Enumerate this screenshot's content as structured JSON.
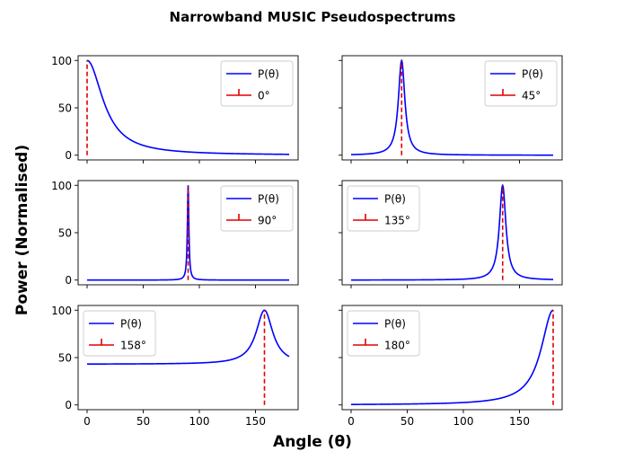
{
  "figure": {
    "title": "Narrowband MUSIC Pseudospectrums",
    "xlabel": "Angle (θ)",
    "ylabel": "Power (Normalised)"
  },
  "colors": {
    "curve": "#0000ff",
    "marker": "#e00000"
  },
  "chart_data": [
    {
      "type": "line",
      "series": [
        {
          "name": "P(θ)",
          "model": "peak",
          "center": 0,
          "width": 17,
          "floor": 0,
          "x_range": [
            0,
            180
          ]
        },
        {
          "name": "0°",
          "stem_x": 0,
          "stem_height": 100
        }
      ],
      "xlim": [
        -8,
        188
      ],
      "ylim": [
        -5,
        105
      ],
      "xticks": [
        0,
        50,
        100,
        150
      ],
      "yticks": [
        0,
        50,
        100
      ],
      "legend": "top-right"
    },
    {
      "type": "line",
      "series": [
        {
          "name": "P(θ)",
          "model": "peak",
          "center": 45,
          "width": 3.5,
          "floor": 0,
          "x_range": [
            0,
            180
          ]
        },
        {
          "name": "45°",
          "stem_x": 45,
          "stem_height": 100
        }
      ],
      "xlim": [
        -8,
        188
      ],
      "ylim": [
        -5,
        105
      ],
      "xticks": [
        0,
        50,
        100,
        150
      ],
      "yticks": [
        0,
        50,
        100
      ],
      "legend": "top-right"
    },
    {
      "type": "line",
      "series": [
        {
          "name": "P(θ)",
          "model": "peak",
          "center": 90,
          "width": 0.8,
          "floor": 0,
          "x_range": [
            0,
            180
          ]
        },
        {
          "name": "90°",
          "stem_x": 90,
          "stem_height": 100
        }
      ],
      "xlim": [
        -8,
        188
      ],
      "ylim": [
        -5,
        105
      ],
      "xticks": [
        0,
        50,
        100,
        150
      ],
      "yticks": [
        0,
        50,
        100
      ],
      "legend": "top-right"
    },
    {
      "type": "line",
      "series": [
        {
          "name": "P(θ)",
          "model": "peak",
          "center": 135,
          "width": 3.5,
          "floor": 0,
          "x_range": [
            0,
            180
          ]
        },
        {
          "name": "135°",
          "stem_x": 135,
          "stem_height": 100
        }
      ],
      "xlim": [
        -8,
        188
      ],
      "ylim": [
        -5,
        105
      ],
      "xticks": [
        0,
        50,
        100,
        150
      ],
      "yticks": [
        0,
        50,
        100
      ],
      "legend": "top-left"
    },
    {
      "type": "line",
      "series": [
        {
          "name": "P(θ)",
          "model": "peak",
          "center": 158,
          "width": 9,
          "floor": 43,
          "x_range": [
            0,
            180
          ]
        },
        {
          "name": "158°",
          "stem_x": 158,
          "stem_height": 100
        }
      ],
      "xlim": [
        -8,
        188
      ],
      "ylim": [
        -5,
        105
      ],
      "xticks": [
        0,
        50,
        100,
        150
      ],
      "yticks": [
        0,
        50,
        100
      ],
      "legend": "top-left"
    },
    {
      "type": "line",
      "series": [
        {
          "name": "P(θ)",
          "model": "peak",
          "center": 180,
          "width": 13,
          "floor": 0,
          "x_range": [
            0,
            180
          ]
        },
        {
          "name": "180°",
          "stem_x": 180,
          "stem_height": 100
        }
      ],
      "xlim": [
        -8,
        188
      ],
      "ylim": [
        -5,
        105
      ],
      "xticks": [
        0,
        50,
        100,
        150
      ],
      "yticks": [
        0,
        50,
        100
      ],
      "legend": "top-left"
    }
  ]
}
